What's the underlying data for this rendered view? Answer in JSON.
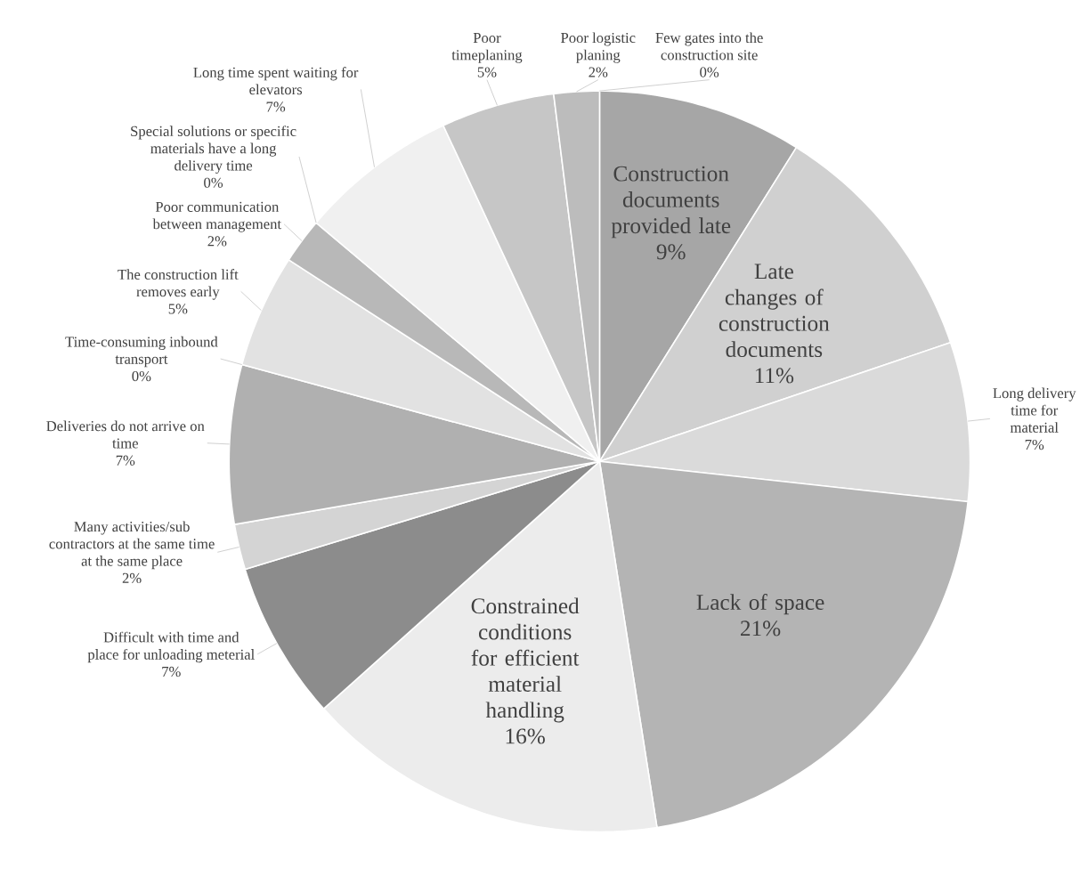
{
  "chart_data": {
    "type": "pie",
    "categories": [
      "Construction documents provided late",
      "Late changes of construction documents",
      "Long delivery time for material",
      "Lack of space",
      "Constrained conditions for efficient material handling",
      "Difficult with time and place for unloading meterial",
      "Many activities/sub contractors at the same time at the same place",
      "Deliveries do not arrive on time",
      "Time-consuming inbound transport",
      "The construction lift removes early",
      "Poor communication between management",
      "Special solutions or specific materials have a long delivery time",
      "Long time spent waiting for elevators",
      "Poor timeplaning",
      "Poor logistic planing",
      "Few gates into the construction site"
    ],
    "values": [
      9,
      11,
      7,
      21,
      16,
      7,
      2,
      7,
      0,
      5,
      2,
      0,
      7,
      5,
      2,
      0
    ],
    "value_labels": [
      "9%",
      "11%",
      "7%",
      "21%",
      "16%",
      "7%",
      "2%",
      "7%",
      "0%",
      "5%",
      "2%",
      "0%",
      "7%",
      "5%",
      "2%",
      "0%"
    ],
    "colors": [
      "#a6a6a6",
      "#d0d0d0",
      "#dadada",
      "#b4b4b4",
      "#ececec",
      "#8c8c8c",
      "#d4d4d4",
      "#b0b0b0",
      "#c0c0c0",
      "#e2e2e2",
      "#b8b8b8",
      "#e6e6e6",
      "#f0f0f0",
      "#c6c6c6",
      "#bcbcbc",
      "#9c9c9c"
    ]
  }
}
